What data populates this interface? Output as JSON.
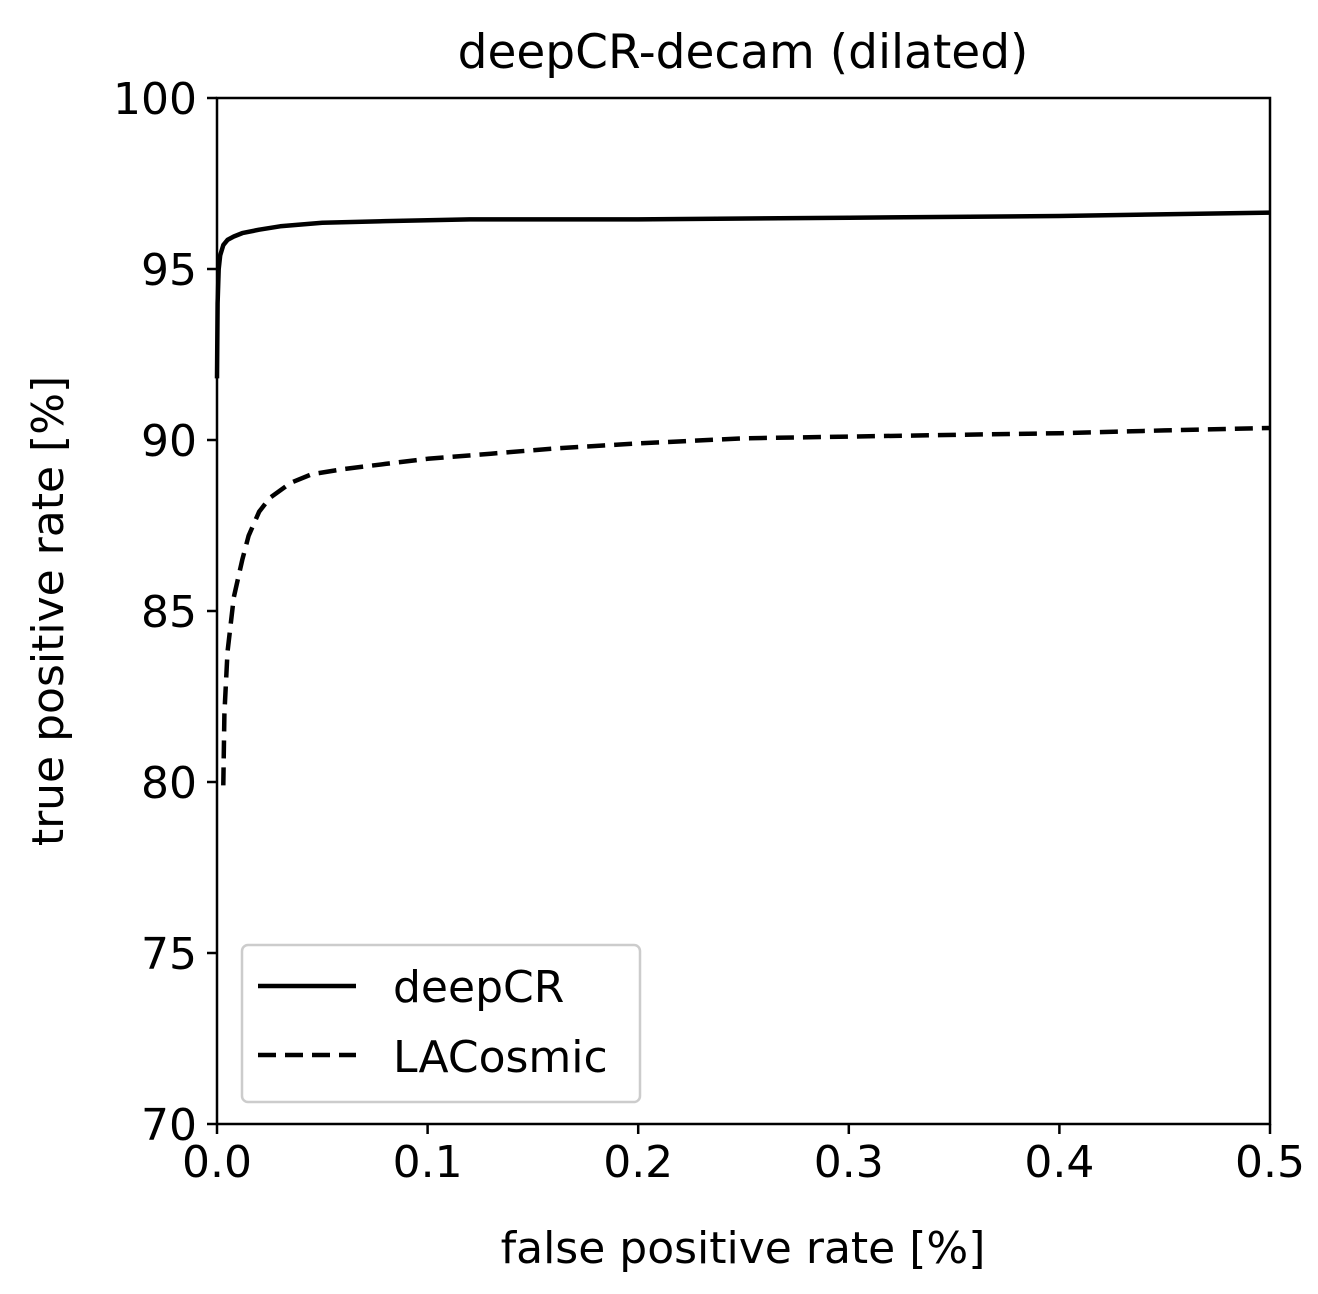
{
  "chart_data": {
    "type": "line",
    "title": "deepCR-decam (dilated)",
    "xlabel": "false positive rate [%]",
    "ylabel": "true positive rate [%]",
    "xlim": [
      0.0,
      0.5
    ],
    "ylim": [
      70,
      100
    ],
    "xticks": [
      0.0,
      0.1,
      0.2,
      0.3,
      0.4,
      0.5
    ],
    "xtick_labels": [
      "0.0",
      "0.1",
      "0.2",
      "0.3",
      "0.4",
      "0.5"
    ],
    "yticks": [
      70,
      75,
      80,
      85,
      90,
      95,
      100
    ],
    "ytick_labels": [
      "70",
      "75",
      "80",
      "85",
      "90",
      "95",
      "100"
    ],
    "grid": false,
    "legend_position": "lower-left",
    "series": [
      {
        "name": "deepCR",
        "style": "solid",
        "color": "#000000",
        "x": [
          0.0,
          0.0003,
          0.0008,
          0.0015,
          0.003,
          0.005,
          0.008,
          0.012,
          0.02,
          0.03,
          0.05,
          0.08,
          0.12,
          0.2,
          0.3,
          0.4,
          0.5
        ],
        "y": [
          91.8,
          94.0,
          95.0,
          95.4,
          95.7,
          95.85,
          95.95,
          96.05,
          96.15,
          96.25,
          96.35,
          96.4,
          96.45,
          96.45,
          96.5,
          96.55,
          96.65
        ]
      },
      {
        "name": "LACosmic",
        "style": "dashed",
        "color": "#000000",
        "x": [
          0.003,
          0.0035,
          0.005,
          0.008,
          0.012,
          0.015,
          0.02,
          0.025,
          0.035,
          0.045,
          0.06,
          0.08,
          0.1,
          0.13,
          0.16,
          0.2,
          0.25,
          0.3,
          0.35,
          0.4,
          0.45,
          0.5
        ],
        "y": [
          79.9,
          82.0,
          83.8,
          85.4,
          86.5,
          87.2,
          87.9,
          88.3,
          88.75,
          89.0,
          89.15,
          89.3,
          89.45,
          89.6,
          89.75,
          89.9,
          90.05,
          90.1,
          90.15,
          90.2,
          90.28,
          90.35
        ]
      }
    ]
  }
}
